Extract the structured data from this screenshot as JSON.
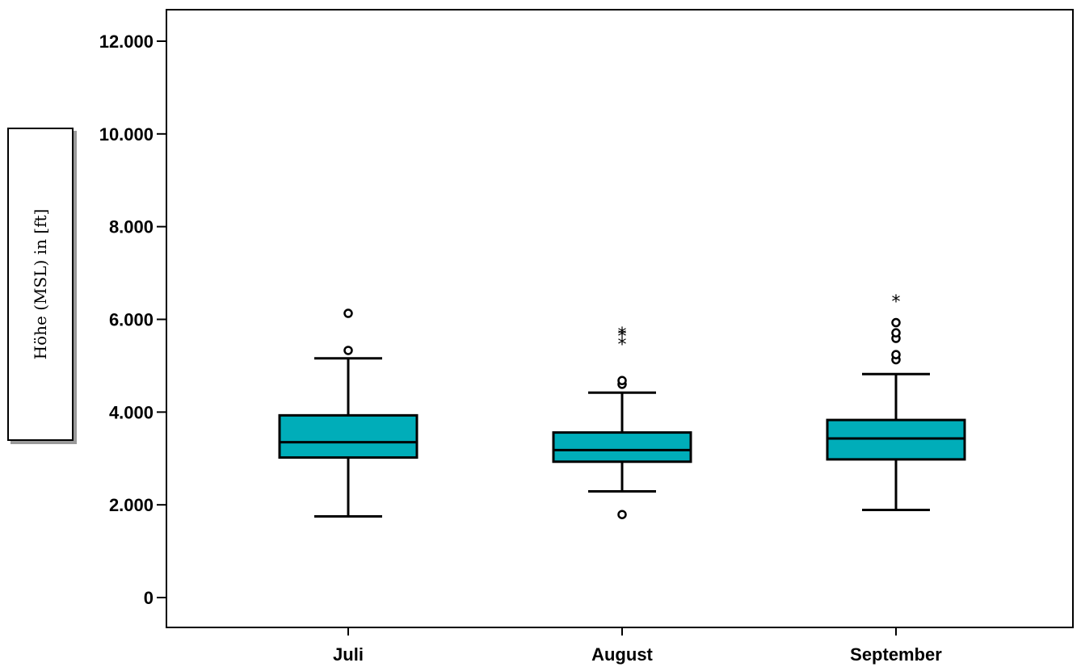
{
  "chart_data": {
    "type": "boxplot",
    "ylabel": "Höhe (MSL) in [ft]",
    "ylim": [
      0,
      12000
    ],
    "y_ticks": [
      0,
      2000,
      4000,
      6000,
      8000,
      10000,
      12000
    ],
    "y_tick_labels": [
      "0",
      "2.000",
      "4.000",
      "6.000",
      "8.000",
      "10.000",
      "12.000"
    ],
    "categories": [
      "Juli",
      "August",
      "September"
    ],
    "box_color": "#00adb9",
    "boxes": [
      {
        "category": "Juli",
        "whisker_low": 1750,
        "q1": 3020,
        "median": 3350,
        "q3": 3930,
        "whisker_high": 5160,
        "outliers": [
          5330,
          6130
        ],
        "extremes": []
      },
      {
        "category": "August",
        "whisker_low": 2290,
        "q1": 2930,
        "median": 3180,
        "q3": 3560,
        "whisker_high": 4420,
        "outliers": [
          1790,
          4600,
          4680
        ],
        "extremes": [
          5500,
          5680,
          5730
        ]
      },
      {
        "category": "September",
        "whisker_low": 1890,
        "q1": 2980,
        "median": 3430,
        "q3": 3830,
        "whisker_high": 4820,
        "outliers": [
          5130,
          5240,
          5590,
          5710,
          5930
        ],
        "extremes": [
          6430
        ]
      }
    ]
  }
}
